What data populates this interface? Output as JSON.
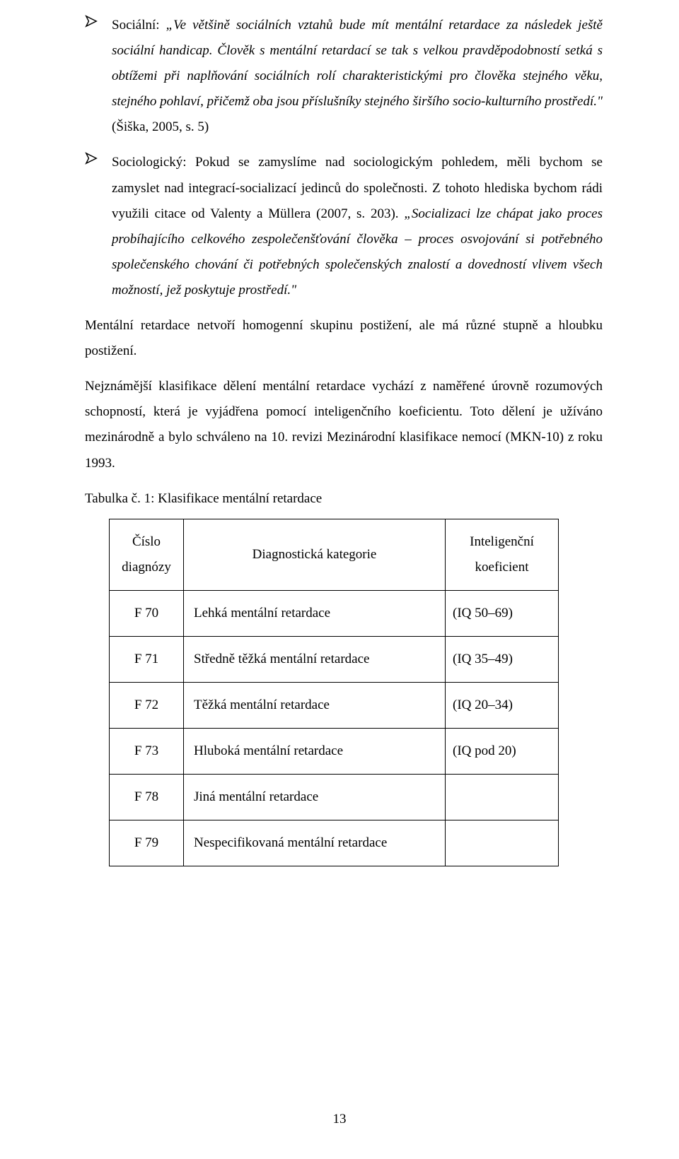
{
  "bullets": [
    {
      "lead": "Sociální: ",
      "quote_a": "„Ve většině sociálních vztahů bude mít mentální retardace za následek ještě sociální handicap. Člověk s mentální retardací se tak s velkou pravděpodobností setká s obtížemi při naplňování sociálních rolí charakteristickými pro člověka stejného věku, stejného pohlaví, přičemž oba jsou příslušníky stejného širšího socio-kulturního prostředí.\"",
      "cite_a": " (Šiška, 2005, s. 5)"
    },
    {
      "lead": "Sociologický: Pokud se zamyslíme nad sociologickým pohledem, měli bychom se zamyslet nad integrací-socializací jedinců do společnosti. Z tohoto hlediska bychom rádi využili citace od Valenty a Müllera (2007, s. 203). ",
      "quote_a": "„Socializaci lze chápat jako proces probíhajícího celkového zespolečenšťování člověka – proces osvojování si potřebného společenského chování či potřebných společenských znalostí a dovedností vlivem všech možností, jež poskytuje prostředí.\""
    }
  ],
  "p1": "Mentální retardace netvoří homogenní skupinu postižení, ale má různé stupně a hloubku postižení.",
  "p2": "Nejznámější klasifikace dělení mentální retardace vychází z naměřené úrovně rozumových schopností, která je vyjádřena pomocí inteligenčního koeficientu. Toto dělení je užíváno mezinárodně a bylo schváleno na 10. revizi Mezinárodní klasifikace nemocí (MKN-10) z roku 1993.",
  "table_caption": "Tabulka č. 1: Klasifikace mentální retardace",
  "table": {
    "headers": [
      "Číslo diagnózy",
      "Diagnostická kategorie",
      "Inteligenční koeficient"
    ],
    "rows": [
      [
        "F 70",
        "Lehká mentální retardace",
        "(IQ 50–69)"
      ],
      [
        "F 71",
        "Středně těžká mentální retardace",
        "(IQ 35–49)"
      ],
      [
        "F 72",
        "Těžká mentální retardace",
        "(IQ 20–34)"
      ],
      [
        "F 73",
        "Hluboká mentální retardace",
        "(IQ pod 20)"
      ],
      [
        "F 78",
        "Jiná mentální retardace",
        ""
      ],
      [
        "F 79",
        "Nespecifikovaná mentální retardace",
        ""
      ]
    ]
  },
  "page_number": "13"
}
